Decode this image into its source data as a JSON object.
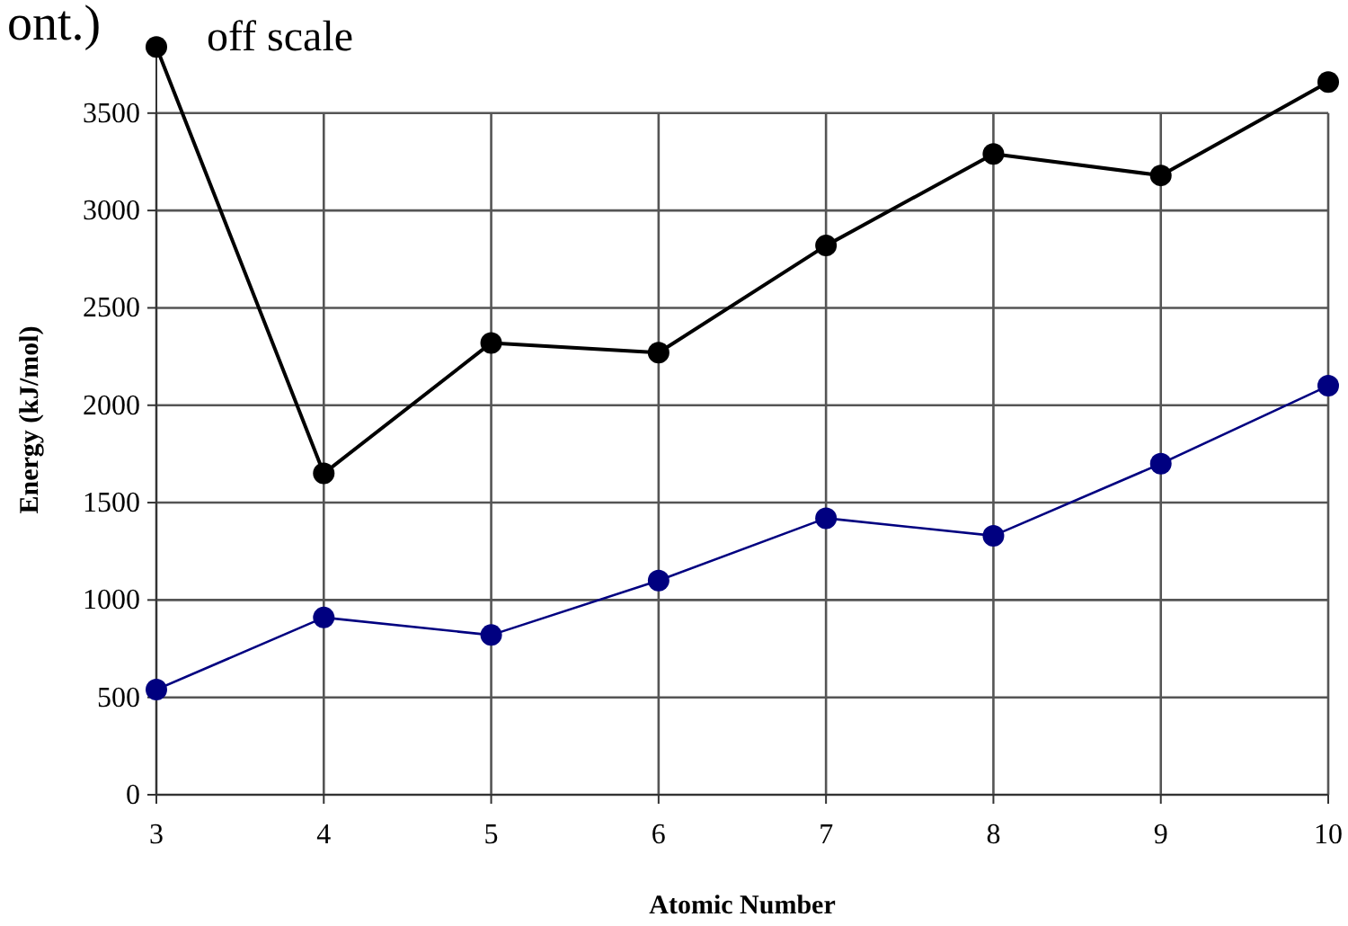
{
  "chart_data": {
    "type": "line",
    "xlabel": "Atomic Number",
    "ylabel": "Energy (kJ/mol)",
    "x": [
      3,
      4,
      5,
      6,
      7,
      8,
      9,
      10
    ],
    "series": [
      {
        "color": "#000000",
        "values": [
          3840,
          1650,
          2320,
          2270,
          2820,
          3290,
          3180,
          3660
        ]
      },
      {
        "color": "#000080",
        "values": [
          540,
          910,
          820,
          1100,
          1420,
          1330,
          1700,
          2100
        ]
      }
    ],
    "xlim": [
      3,
      10
    ],
    "xticks": [
      3,
      4,
      5,
      6,
      7,
      8,
      9,
      10
    ],
    "ylim": [
      0,
      3850
    ],
    "yticks": [
      0,
      500,
      1000,
      1500,
      2000,
      2500,
      3000,
      3500
    ],
    "grid": true,
    "marker": "circle",
    "line_style": "solid",
    "annotations": [
      "ont.)",
      {
        "text": "off scale",
        "x": 3,
        "y": 3840
      }
    ]
  }
}
